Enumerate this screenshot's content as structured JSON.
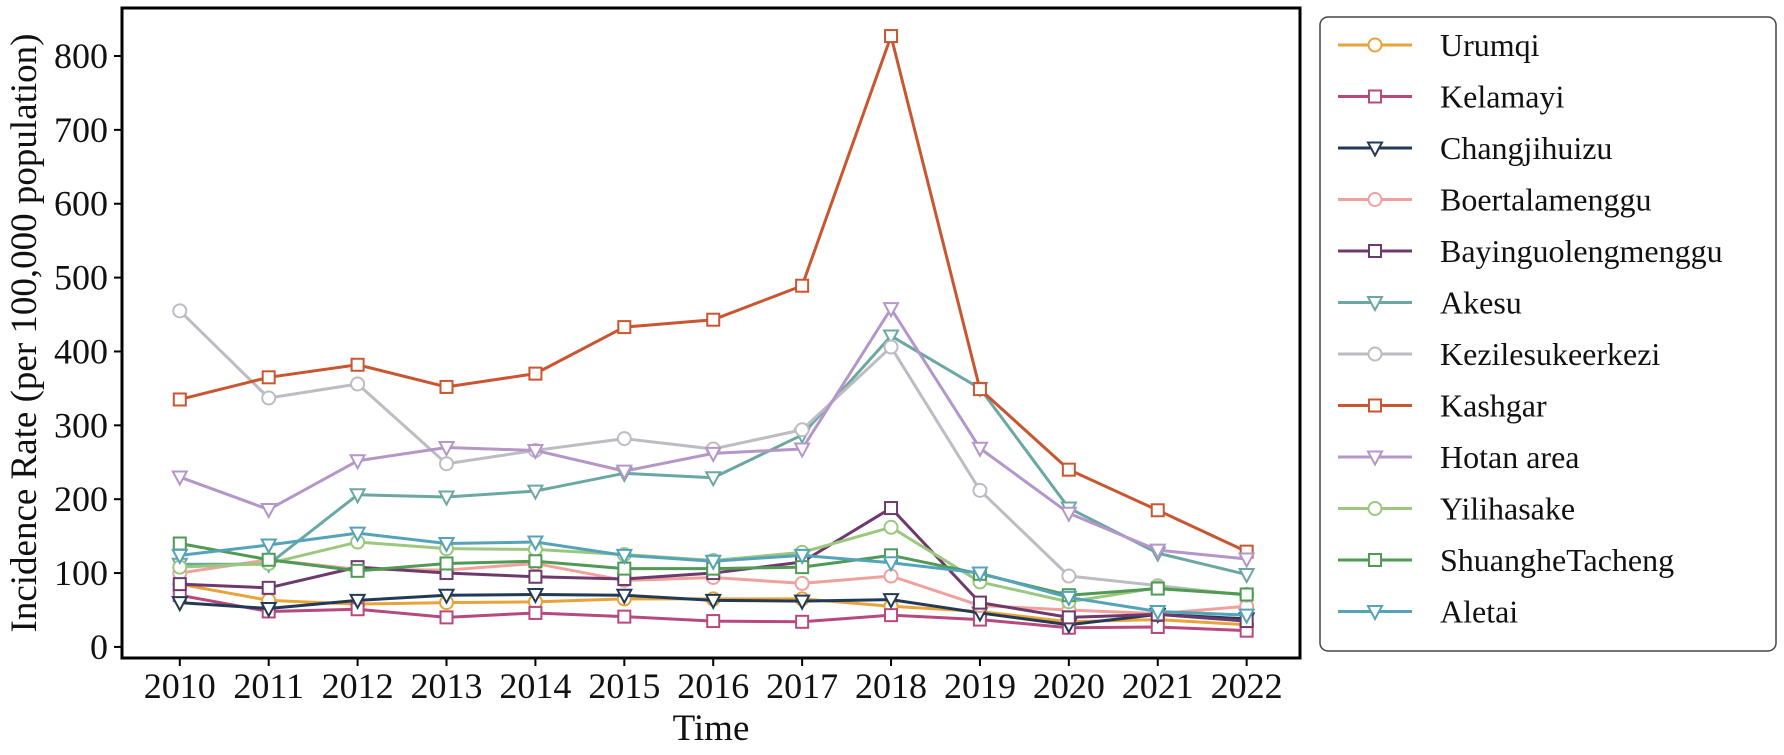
{
  "chart_data": {
    "type": "line",
    "title": "",
    "xlabel": "Time",
    "ylabel": "Incidence Rate (per 100,000 population)",
    "x": [
      2010,
      2011,
      2012,
      2013,
      2014,
      2015,
      2016,
      2017,
      2018,
      2019,
      2020,
      2021,
      2022
    ],
    "yticks": [
      0,
      100,
      200,
      300,
      400,
      500,
      600,
      700,
      800
    ],
    "ylim": [
      -15,
      865
    ],
    "xlim": [
      2009.35,
      2022.6
    ],
    "grid": false,
    "legend_position": "outside-right",
    "series": [
      {
        "name": "Urumqi",
        "color": "#e8a33a",
        "marker": "circle",
        "values": [
          85,
          63,
          58,
          60,
          61,
          65,
          65,
          65,
          55,
          48,
          34,
          37,
          30
        ]
      },
      {
        "name": "Kelamayi",
        "color": "#b8497f",
        "marker": "square",
        "values": [
          70,
          48,
          51,
          40,
          46,
          41,
          35,
          34,
          43,
          37,
          26,
          27,
          22
        ]
      },
      {
        "name": "Changjihuizu",
        "color": "#233a57",
        "marker": "triangle-down",
        "values": [
          60,
          52,
          63,
          70,
          71,
          70,
          63,
          62,
          64,
          46,
          30,
          44,
          38
        ]
      },
      {
        "name": "Boertalamenggu",
        "color": "#f0a19d",
        "marker": "circle",
        "values": [
          100,
          118,
          105,
          104,
          113,
          90,
          94,
          86,
          96,
          56,
          50,
          45,
          55
        ]
      },
      {
        "name": "Bayinguolengmenggu",
        "color": "#6e3a6d",
        "marker": "square",
        "values": [
          85,
          80,
          108,
          100,
          95,
          92,
          100,
          115,
          188,
          60,
          40,
          44,
          35
        ]
      },
      {
        "name": "Akesu",
        "color": "#6ba8a4",
        "marker": "triangle-down",
        "values": [
          112,
          112,
          206,
          203,
          211,
          235,
          229,
          287,
          421,
          350,
          188,
          127,
          98
        ]
      },
      {
        "name": "Kezilesukeerkezi",
        "color": "#bcbcc5",
        "marker": "circle",
        "values": [
          455,
          337,
          356,
          248,
          266,
          282,
          268,
          294,
          406,
          212,
          96,
          83,
          70
        ]
      },
      {
        "name": "Kashgar",
        "color": "#c95630",
        "marker": "square",
        "values": [
          335,
          365,
          382,
          352,
          370,
          433,
          443,
          489,
          827,
          349,
          240,
          185,
          129
        ]
      },
      {
        "name": "Hotan area",
        "color": "#b596c8",
        "marker": "triangle-down",
        "values": [
          230,
          186,
          252,
          270,
          266,
          238,
          262,
          268,
          458,
          269,
          181,
          131,
          119
        ]
      },
      {
        "name": "Yilihasake",
        "color": "#9bc77f",
        "marker": "circle",
        "values": [
          108,
          113,
          142,
          133,
          132,
          125,
          117,
          128,
          162,
          88,
          61,
          80,
          71
        ]
      },
      {
        "name": "ShuangheTacheng",
        "color": "#4f9a55",
        "marker": "square",
        "values": [
          140,
          118,
          103,
          113,
          116,
          106,
          106,
          108,
          124,
          99,
          70,
          79,
          71
        ]
      },
      {
        "name": "Aletai",
        "color": "#54a3b8",
        "marker": "triangle-down",
        "values": [
          124,
          138,
          154,
          140,
          142,
          124,
          116,
          124,
          114,
          100,
          67,
          48,
          43
        ]
      }
    ]
  }
}
